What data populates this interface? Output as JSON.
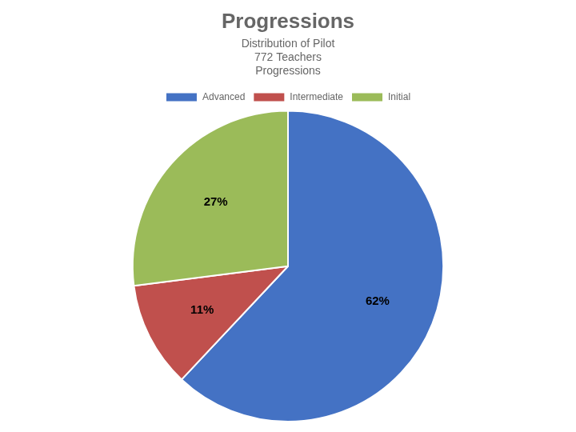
{
  "chart_data": {
    "type": "pie",
    "title": "Progressions",
    "subtitle": [
      "Distribution of Pilot",
      "772 Teachers",
      "Progressions"
    ],
    "categories": [
      "Advanced",
      "Intermediate",
      "Initial"
    ],
    "values": [
      62,
      11,
      27
    ],
    "value_labels": [
      "62%",
      "11%",
      "27%"
    ],
    "colors": [
      "#4472C4",
      "#C0504D",
      "#9BBB59"
    ],
    "data_labels": true,
    "legend": "top"
  }
}
